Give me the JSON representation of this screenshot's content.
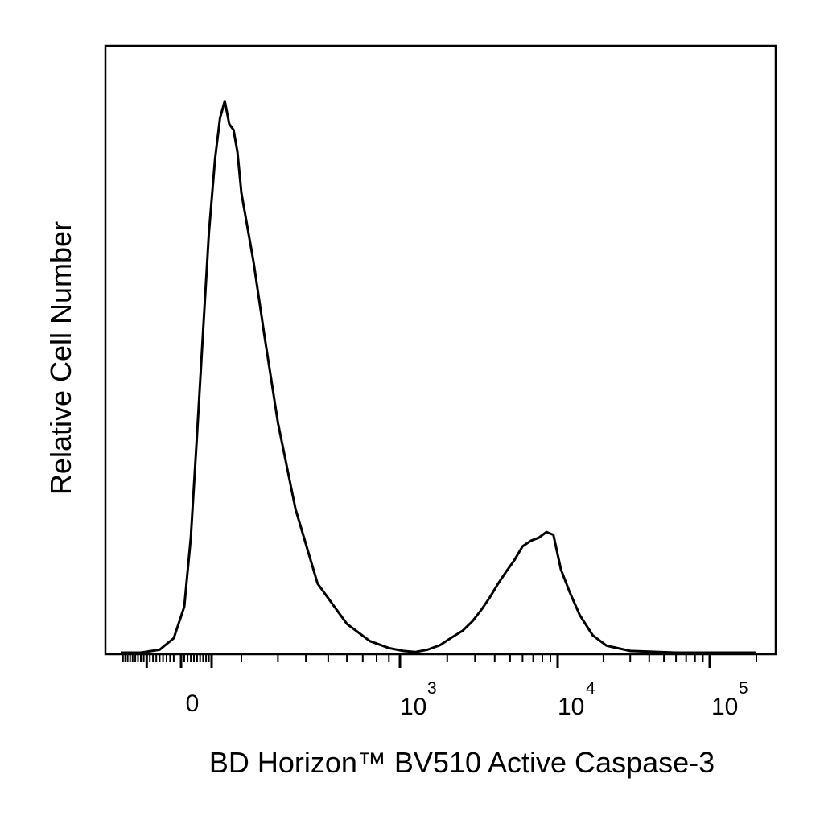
{
  "chart_data": {
    "type": "line",
    "title": "",
    "xlabel": "BD Horizon™ BV510 Active Caspase-3",
    "ylabel": "Relative Cell Number",
    "x_scale": "biexponential",
    "xlim": [
      -200,
      200000
    ],
    "ylim": [
      0,
      100
    ],
    "grid": false,
    "legend": "none",
    "line_color": "#000000",
    "x_tick_labels": [
      {
        "value": 0,
        "base": "0",
        "exp": ""
      },
      {
        "value": 1000,
        "base": "10",
        "exp": "3"
      },
      {
        "value": 10000,
        "base": "10",
        "exp": "4"
      },
      {
        "value": 100000,
        "base": "10",
        "exp": "5"
      }
    ],
    "series": [
      {
        "x": [
          -200,
          -120,
          -60,
          -20,
          10,
          30,
          50,
          70,
          90,
          110,
          125,
          140,
          155,
          170,
          185,
          200,
          230,
          260,
          300,
          360,
          450,
          600,
          750,
          900,
          1050,
          1250,
          1500,
          1800,
          2100,
          2500,
          2900,
          3300,
          3700,
          4200,
          4700,
          5300,
          6000,
          6800,
          7600,
          8500,
          9400,
          10500,
          12000,
          14000,
          17000,
          21000,
          30000,
          60000,
          120000,
          200000
        ],
        "y": [
          0,
          0,
          0.5,
          2.5,
          8,
          20,
          38,
          56,
          73,
          86,
          93,
          96,
          92,
          91,
          87,
          80,
          68,
          55,
          40,
          25,
          12,
          5,
          2,
          0.8,
          0.3,
          0.1,
          0.5,
          1.3,
          2.5,
          3.8,
          5.5,
          7.5,
          9.5,
          12,
          14,
          16,
          18.5,
          19.5,
          20,
          21,
          20.5,
          14.5,
          10.5,
          6.5,
          3,
          1.2,
          0.3,
          0,
          0,
          0
        ]
      }
    ]
  }
}
